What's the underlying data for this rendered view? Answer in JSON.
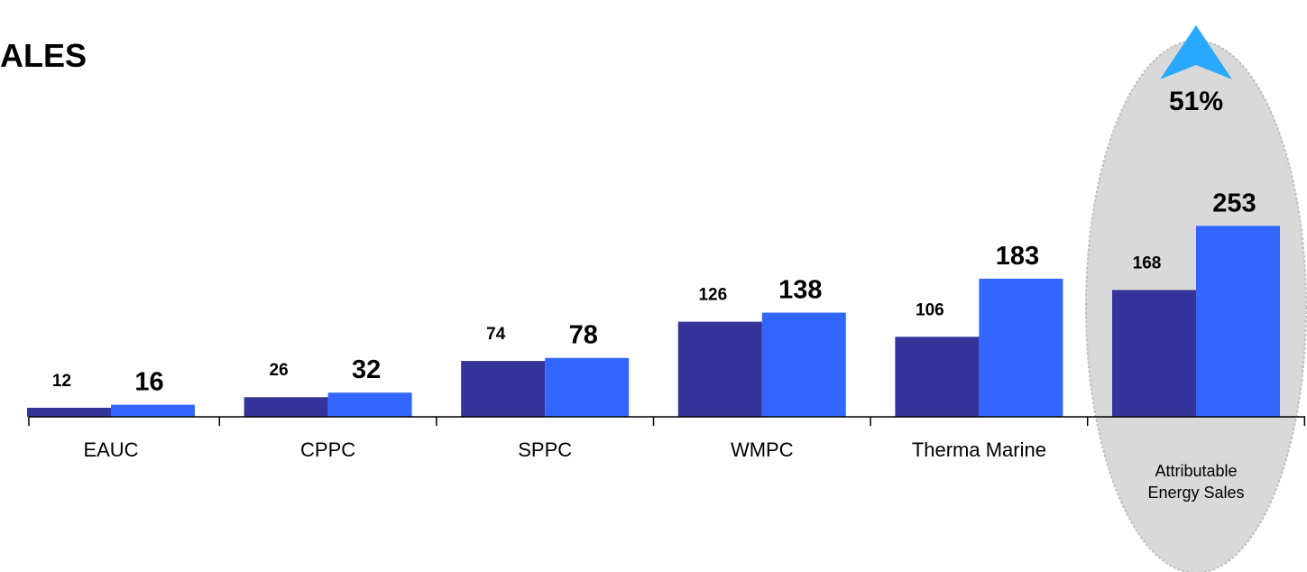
{
  "chart_data": {
    "type": "bar",
    "title": "ALES",
    "categories": [
      "EAUC",
      "CPPC",
      "SPPC",
      "WMPC",
      "Therma Marine",
      "Attributable Energy Sales"
    ],
    "series": [
      {
        "color": "#333399",
        "values": [
          12,
          26,
          74,
          126,
          106,
          168
        ]
      },
      {
        "color": "#3366ff",
        "values": [
          16,
          32,
          78,
          138,
          183,
          253
        ]
      }
    ],
    "ylim": [
      0,
      300
    ],
    "annotations": [
      {
        "text": "51%"
      }
    ]
  }
}
